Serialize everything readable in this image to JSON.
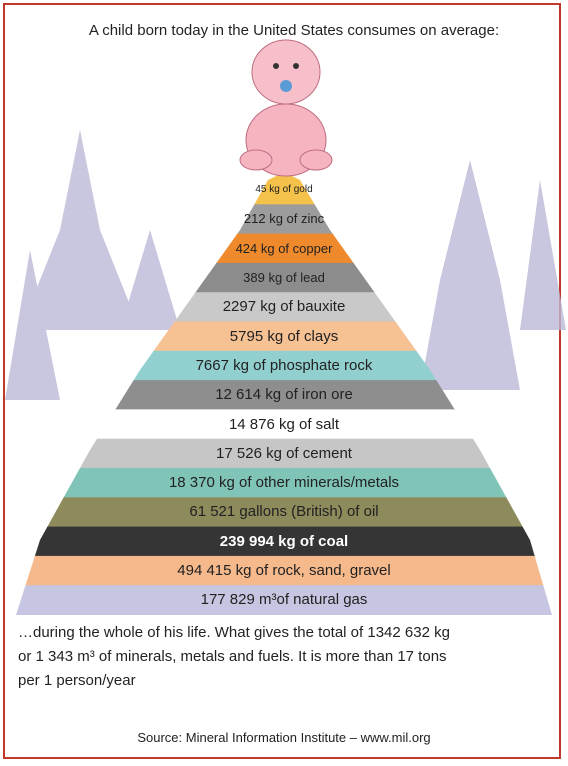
{
  "header": {
    "title": "A child born today in the United States consumes on average:"
  },
  "layers": [
    {
      "label": "45 kg of gold",
      "color": "#f4c24a"
    },
    {
      "label": "212 kg of zinc",
      "color": "#9c9c9c"
    },
    {
      "label": "424 kg of copper",
      "color": "#ef8a2c"
    },
    {
      "label": "389 kg of lead",
      "color": "#8c8c8c"
    },
    {
      "label": "2297 kg of bauxite",
      "color": "#c9c9c9"
    },
    {
      "label": "5795 kg of clays",
      "color": "#f6c193"
    },
    {
      "label": "7667 kg of phosphate rock",
      "color": "#92d0d0"
    },
    {
      "label": "12 614 kg of iron ore",
      "color": "#8e8e8e"
    },
    {
      "label": "14 876 kg of salt",
      "color": "#ffffff"
    },
    {
      "label": "17 526 kg of cement",
      "color": "#c6c6c6"
    },
    {
      "label": "18 370 kg of other minerals/metals",
      "color": "#80c4b8"
    },
    {
      "label": "61 521 gallons (British) of oil",
      "color": "#8d8a5c"
    },
    {
      "label": "239 994 kg of coal",
      "color": "#353535"
    },
    {
      "label": "494 415 kg of rock, sand, gravel",
      "color": "#f5b98b"
    },
    {
      "label": "177 829 m³of natural gas",
      "color": "#c6c6e2"
    }
  ],
  "footer": {
    "lines": [
      "…during the whole of his life. What gives the total of 1342 632 kg",
      "or 1 343 m³ of minerals, metals and fuels. It is more than 17 tons",
      "per 1 person/year"
    ],
    "source": "Source: Mineral Information Institute – www.mil.org"
  }
}
